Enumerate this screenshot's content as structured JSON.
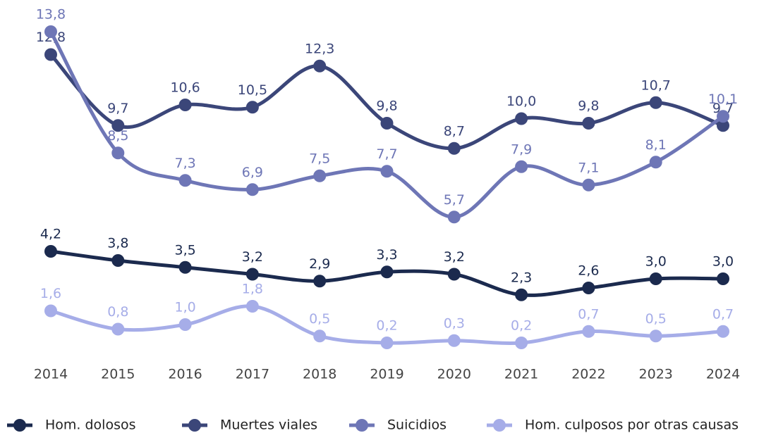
{
  "chart_data": {
    "type": "line",
    "categories": [
      "2014",
      "2015",
      "2016",
      "2017",
      "2018",
      "2019",
      "2020",
      "2021",
      "2022",
      "2023",
      "2024"
    ],
    "ylim": [
      0,
      15
    ],
    "series": [
      {
        "name": "Hom. dolosos",
        "color": "#1b2a4e",
        "values": [
          4.2,
          3.8,
          3.5,
          3.2,
          2.9,
          3.3,
          3.2,
          2.3,
          2.6,
          3.0,
          3.0
        ],
        "value_labels": [
          "4,2",
          "3,8",
          "3,5",
          "3,2",
          "2,9",
          "3,3",
          "3,2",
          "2,3",
          "2,6",
          "3,0",
          "3,0"
        ]
      },
      {
        "name": "Muertes viales",
        "color": "#3b4679",
        "values": [
          12.8,
          9.7,
          10.6,
          10.5,
          12.3,
          9.8,
          8.7,
          10.0,
          9.8,
          10.7,
          9.7
        ],
        "value_labels": [
          "12,8",
          "9,7",
          "10,6",
          "10,5",
          "12,3",
          "9,8",
          "8,7",
          "10,0",
          "9,8",
          "10,7",
          "9,7"
        ]
      },
      {
        "name": "Suicidios",
        "color": "#6e76b6",
        "values": [
          13.8,
          8.5,
          7.3,
          6.9,
          7.5,
          7.7,
          5.7,
          7.9,
          7.1,
          8.1,
          10.1
        ],
        "value_labels": [
          "13,8",
          "8,5",
          "7,3",
          "6,9",
          "7,5",
          "7,7",
          "5,7",
          "7,9",
          "7,1",
          "8,1",
          "10,1"
        ]
      },
      {
        "name": "Hom. culposos por otras causas",
        "color": "#a6ade8",
        "values": [
          1.6,
          0.8,
          1.0,
          1.8,
          0.5,
          0.2,
          0.3,
          0.2,
          0.7,
          0.5,
          0.7
        ],
        "value_labels": [
          "1,6",
          "0,8",
          "1,0",
          "1,8",
          "0,5",
          "0,2",
          "0,3",
          "0,2",
          "0,7",
          "0,5",
          "0,7"
        ]
      }
    ]
  }
}
